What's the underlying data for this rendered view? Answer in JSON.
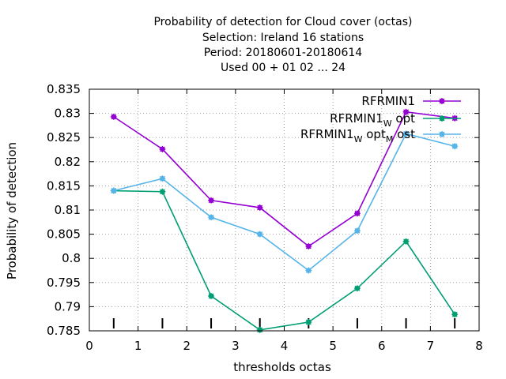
{
  "chart_data": {
    "type": "line",
    "title_lines": [
      "Probability of detection  for Cloud cover (octas)",
      "Selection: Ireland      16 stations",
      "Period: 20180601-20180614",
      "Used  00  + 01 02 ... 24"
    ],
    "xlabel": "thresholds octas",
    "ylabel": "Probability of detection",
    "xlim": [
      0,
      8
    ],
    "ylim": [
      0.785,
      0.835
    ],
    "xticks": [
      0,
      1,
      2,
      3,
      4,
      5,
      6,
      7,
      8
    ],
    "yticks": [
      0.785,
      0.79,
      0.795,
      0.8,
      0.805,
      0.81,
      0.815,
      0.82,
      0.825,
      0.83,
      0.835
    ],
    "ytick_labels": [
      "0.785",
      "0.79",
      "0.795",
      "0.8",
      "0.805",
      "0.81",
      "0.815",
      "0.82",
      "0.825",
      "0.83",
      "0.835"
    ],
    "grid": true,
    "legend_position": "top-right",
    "x": [
      0.5,
      1.5,
      2.5,
      3.5,
      4.5,
      5.5,
      6.5,
      7.5
    ],
    "series": [
      {
        "name": "RFRMIN1",
        "legend_parts": [
          {
            "text": "RFRMIN1",
            "sub": false
          }
        ],
        "color": "#9400d3",
        "values": [
          0.8293,
          0.8226,
          0.812,
          0.8105,
          0.8025,
          0.8093,
          0.8303,
          0.829
        ]
      },
      {
        "name": "RFRMIN1_W opt",
        "legend_parts": [
          {
            "text": "RFRMIN1",
            "sub": false
          },
          {
            "text": "W",
            "sub": true
          },
          {
            "text": " opt",
            "sub": false
          }
        ],
        "color": "#009e73",
        "values": [
          0.814,
          0.8138,
          0.7922,
          0.7852,
          0.7868,
          0.7938,
          0.8035,
          0.7884
        ]
      },
      {
        "name": "RFRMIN1_W opt_M ost",
        "legend_parts": [
          {
            "text": "RFRMIN1",
            "sub": false
          },
          {
            "text": "W",
            "sub": true
          },
          {
            "text": " opt",
            "sub": false
          },
          {
            "text": "M",
            "sub": true
          },
          {
            "text": " ost",
            "sub": false
          }
        ],
        "color": "#56b4e9",
        "values": [
          0.814,
          0.8165,
          0.8085,
          0.805,
          0.7975,
          0.8057,
          0.8258,
          0.8232
        ]
      }
    ],
    "baseline_tick_x": [
      0.5,
      1.5,
      2.5,
      3.5,
      4.5,
      5.5,
      6.5,
      7.5
    ]
  }
}
